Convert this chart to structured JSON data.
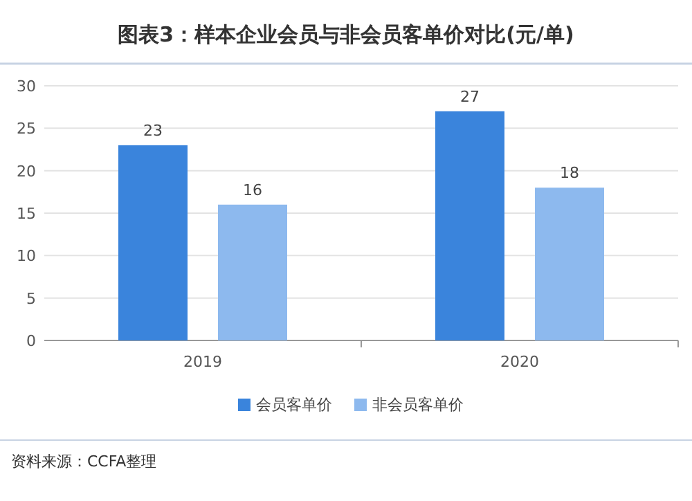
{
  "chart_data": {
    "type": "bar",
    "title": "图表3：样本企业会员与非会员客单价对比(元/单)",
    "categories": [
      "2019",
      "2020"
    ],
    "series": [
      {
        "name": "会员客单价",
        "color": "#3a84dc",
        "values": [
          23,
          27
        ]
      },
      {
        "name": "非会员客单价",
        "color": "#8db9ee",
        "values": [
          16,
          18
        ]
      }
    ],
    "ylim": [
      0,
      30
    ],
    "yticks": [
      0,
      5,
      10,
      15,
      20,
      25,
      30
    ],
    "grid": "y",
    "legend": "bottom",
    "data_labels": true,
    "annotations": [
      "资料来源：CCFA整理"
    ]
  }
}
